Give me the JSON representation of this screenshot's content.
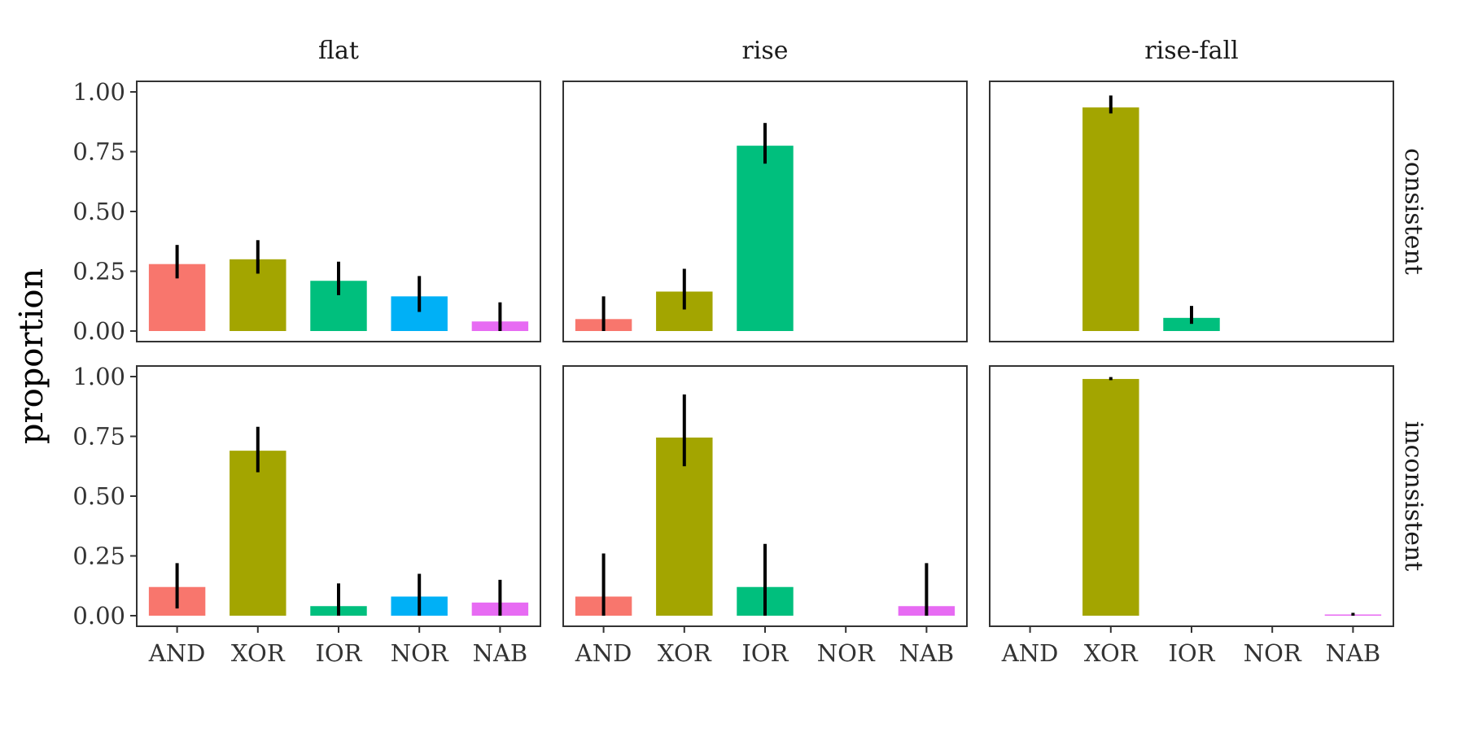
{
  "chart_data": {
    "type": "bar",
    "ylabel": "proportion",
    "xlabel": "",
    "ylim": [
      0,
      1
    ],
    "yticks": [
      "0.00",
      "0.25",
      "0.50",
      "0.75",
      "1.00"
    ],
    "categories": [
      "AND",
      "XOR",
      "IOR",
      "NOR",
      "NAB"
    ],
    "category_colors": {
      "AND": "#F8766D",
      "XOR": "#A3A500",
      "IOR": "#00BF7D",
      "NOR": "#00B0F6",
      "NAB": "#E76BF3"
    },
    "column_facets": [
      "flat",
      "rise",
      "rise-fall"
    ],
    "row_facets": [
      "consistent",
      "inconsistent"
    ],
    "legend": "none",
    "grid": false,
    "panels": [
      {
        "row": "consistent",
        "col": "flat",
        "values": [
          0.28,
          0.3,
          0.21,
          0.145,
          0.04
        ],
        "errors": [
          [
            0.22,
            0.36
          ],
          [
            0.24,
            0.38
          ],
          [
            0.15,
            0.29
          ],
          [
            0.08,
            0.23
          ],
          [
            0.0,
            0.12
          ]
        ]
      },
      {
        "row": "consistent",
        "col": "rise",
        "values": [
          0.05,
          0.165,
          0.775,
          0.0,
          0.0
        ],
        "errors": [
          [
            0.0,
            0.145
          ],
          [
            0.09,
            0.26
          ],
          [
            0.7,
            0.87
          ],
          null,
          null
        ]
      },
      {
        "row": "consistent",
        "col": "rise-fall",
        "values": [
          0.0,
          0.935,
          0.055,
          0.0,
          0.0
        ],
        "errors": [
          null,
          [
            0.91,
            0.985
          ],
          [
            0.03,
            0.105
          ],
          null,
          null
        ]
      },
      {
        "row": "inconsistent",
        "col": "flat",
        "values": [
          0.12,
          0.69,
          0.04,
          0.08,
          0.055
        ],
        "errors": [
          [
            0.03,
            0.22
          ],
          [
            0.6,
            0.79
          ],
          [
            0.0,
            0.135
          ],
          [
            0.0,
            0.175
          ],
          [
            0.0,
            0.15
          ]
        ]
      },
      {
        "row": "inconsistent",
        "col": "rise",
        "values": [
          0.08,
          0.745,
          0.12,
          0.0,
          0.04
        ],
        "errors": [
          [
            0.0,
            0.26
          ],
          [
            0.625,
            0.925
          ],
          [
            0.0,
            0.3
          ],
          null,
          [
            0.0,
            0.22
          ]
        ]
      },
      {
        "row": "inconsistent",
        "col": "rise-fall",
        "values": [
          0.0,
          0.99,
          0.0,
          0.0,
          0.005
        ],
        "errors": [
          null,
          [
            0.985,
            0.998
          ],
          null,
          null,
          [
            0.0,
            0.012
          ]
        ]
      }
    ]
  }
}
